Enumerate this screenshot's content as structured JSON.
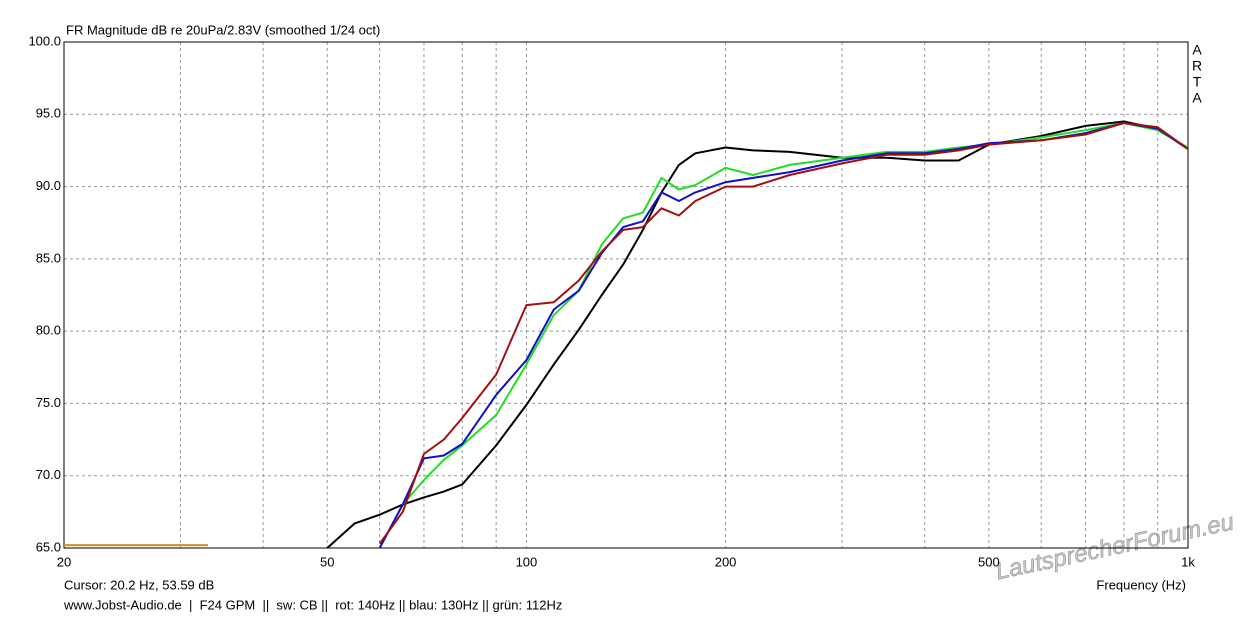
{
  "chart_data": {
    "type": "line",
    "title": "FR Magnitude dB re 20uPa/2.83V (smoothed 1/24 oct)",
    "xlabel": "Frequency (Hz)",
    "side_label": "ARTA",
    "cursor_text": "Cursor: 20.2 Hz, 53.59 dB",
    "footer": "www.Jobst-Audio.de  |  F24 GPM  ||  sw: CB ||  rot: 140Hz || blau: 130Hz || grün: 112Hz",
    "watermark": "LautsprecherForum.eu",
    "xlog": true,
    "grid": true,
    "xlim": [
      20,
      1000
    ],
    "ylim": [
      65,
      100
    ],
    "xticks": [
      20,
      50,
      100,
      200,
      500,
      {
        "value": 1000,
        "label": "1k"
      }
    ],
    "xgrid_minor": [
      30,
      40,
      60,
      70,
      80,
      90,
      300,
      400,
      600,
      700,
      800,
      900
    ],
    "yticks": [
      {
        "value": 65,
        "label": "65.0"
      },
      {
        "value": 70,
        "label": "70.0"
      },
      {
        "value": 75,
        "label": "75.0"
      },
      {
        "value": 80,
        "label": "80.0"
      },
      {
        "value": 85,
        "label": "85.0"
      },
      {
        "value": 90,
        "label": "90.0"
      },
      {
        "value": 95,
        "label": "95.0"
      },
      {
        "value": 100,
        "label": "100.0"
      }
    ],
    "x": [
      50,
      55,
      60,
      65,
      70,
      75,
      80,
      90,
      100,
      110,
      120,
      130,
      140,
      150,
      160,
      170,
      180,
      200,
      220,
      250,
      300,
      350,
      400,
      450,
      500,
      600,
      700,
      800,
      900,
      1000
    ],
    "series": [
      {
        "color": "#000000",
        "values": [
          65.0,
          66.7,
          67.3,
          68.0,
          68.5,
          68.9,
          69.4,
          72.1,
          74.9,
          77.7,
          80.1,
          82.5,
          84.6,
          87.0,
          89.6,
          91.5,
          92.3,
          92.7,
          92.5,
          92.4,
          92.0,
          92.0,
          91.8,
          91.8,
          92.9,
          93.5,
          94.2,
          94.5,
          94.0,
          92.6
        ]
      },
      {
        "color": "#22dd22",
        "values": [
          null,
          null,
          65.0,
          68.0,
          69.7,
          71.1,
          72.1,
          74.2,
          77.7,
          81.1,
          82.8,
          86.0,
          87.8,
          88.2,
          90.6,
          89.8,
          90.1,
          91.3,
          90.8,
          91.5,
          92.0,
          92.4,
          92.4,
          92.7,
          92.9,
          93.4,
          93.9,
          94.4,
          93.9,
          92.7
        ]
      },
      {
        "color": "#1010cc",
        "values": [
          null,
          null,
          65.0,
          68.0,
          71.2,
          71.4,
          72.2,
          75.6,
          78.0,
          81.5,
          82.8,
          85.4,
          87.2,
          87.6,
          89.6,
          89.0,
          89.6,
          90.3,
          90.6,
          91.0,
          91.8,
          92.3,
          92.3,
          92.6,
          93.0,
          93.2,
          93.7,
          94.4,
          94.0,
          92.6
        ]
      },
      {
        "color": "#a01010",
        "values": [
          null,
          null,
          65.3,
          67.5,
          71.5,
          72.5,
          74.0,
          77.0,
          81.8,
          82.0,
          83.5,
          85.5,
          87.0,
          87.2,
          88.5,
          88.0,
          89.0,
          90.0,
          90.0,
          90.8,
          91.6,
          92.2,
          92.2,
          92.5,
          92.9,
          93.2,
          93.6,
          94.4,
          94.1,
          92.6
        ]
      }
    ],
    "cursor_line": {
      "color": "#d98c1a",
      "x": [
        20,
        33
      ],
      "values": [
        65.2,
        65.2
      ]
    }
  }
}
